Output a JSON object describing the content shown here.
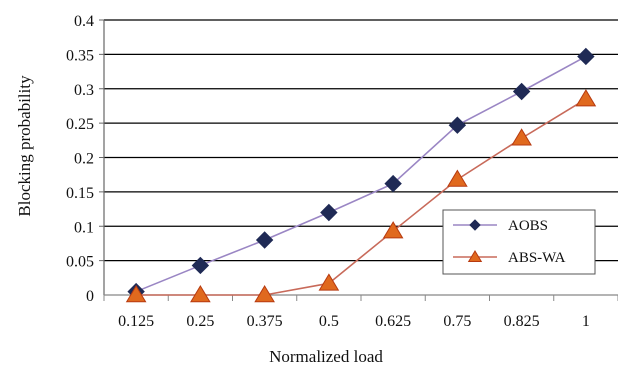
{
  "chart_data": {
    "type": "line",
    "xlabel": "Normalized load",
    "ylabel": "Blocking probability",
    "categories": [
      "0.125",
      "0.25",
      "0.375",
      "0.5",
      "0.625",
      "0.75",
      "0.825",
      "1"
    ],
    "yticks": [
      "0",
      "0.05",
      "0.1",
      "0.15",
      "0.2",
      "0.25",
      "0.3",
      "0.35",
      "0.4"
    ],
    "ylim": [
      0,
      0.4
    ],
    "grid": "horizontal",
    "legend_position": "right",
    "series": [
      {
        "name": "AOBS",
        "line_color": "#9a86c4",
        "marker": "diamond",
        "marker_color": "#1f2a55",
        "values": [
          0.005,
          0.043,
          0.08,
          0.12,
          0.162,
          0.247,
          0.296,
          0.347
        ]
      },
      {
        "name": "ABS-WA",
        "line_color": "#c86a5a",
        "marker": "triangle",
        "marker_color": "#e0691e",
        "marker_stroke": "#b73a10",
        "values": [
          0.0,
          0.0,
          0.0,
          0.017,
          0.093,
          0.168,
          0.228,
          0.285
        ]
      }
    ]
  }
}
